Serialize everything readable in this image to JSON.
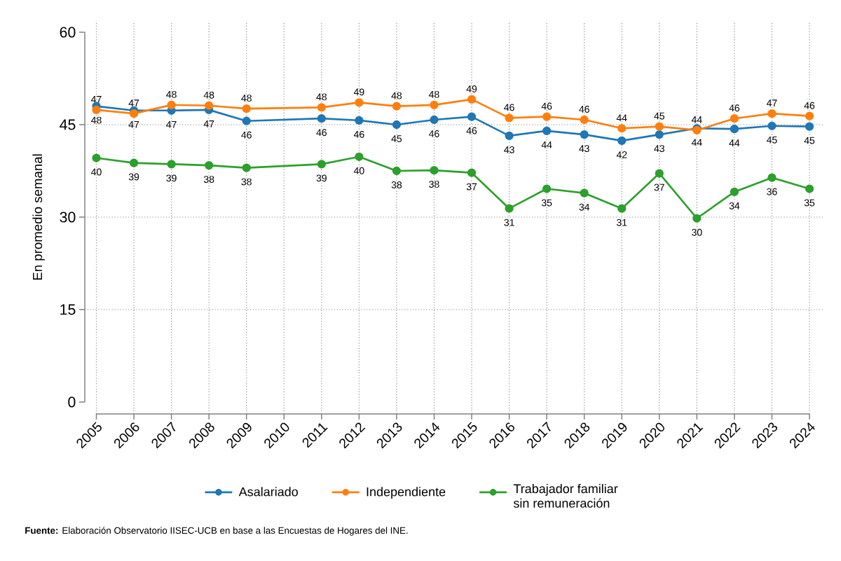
{
  "chart_data": {
    "type": "line",
    "ylabel": "En promedio semanal",
    "annotations": [
      "**Fuente:** Elaboración Observatorio IISEC-UCB en base a las Encuestas de Hogares del INE."
    ],
    "x": [
      2005,
      2006,
      2007,
      2008,
      2009,
      2011,
      2012,
      2013,
      2014,
      2015,
      2016,
      2017,
      2018,
      2019,
      2020,
      2021,
      2022,
      2023,
      2024
    ],
    "xlim": [
      2005,
      2024
    ],
    "xticks": [
      2005,
      2006,
      2007,
      2008,
      2009,
      2010,
      2011,
      2012,
      2013,
      2014,
      2015,
      2016,
      2017,
      2018,
      2019,
      2020,
      2021,
      2022,
      2023,
      2024
    ],
    "ylim": [
      0,
      60
    ],
    "yticks": [
      0,
      15,
      30,
      45,
      60
    ],
    "grid": true,
    "legend": "bottom",
    "marker": "circle",
    "line_style": "solid",
    "series": [
      {
        "name": "Asalariado",
        "color": "#1f77b4",
        "values": [
          48.0,
          47.3,
          47.3,
          47.4,
          45.6,
          46.0,
          45.7,
          45.0,
          45.8,
          46.3,
          43.2,
          44.0,
          43.4,
          42.4,
          43.4,
          44.4,
          44.3,
          44.8,
          44.7
        ],
        "value_labels": [
          "48",
          "47",
          "47",
          "47",
          "46",
          "46",
          "46",
          "45",
          "46",
          "46",
          "43",
          "44",
          "43",
          "42",
          "43",
          "44",
          "44",
          "45",
          "45"
        ]
      },
      {
        "name": "Independiente",
        "color": "#ff7f0e",
        "values": [
          47.4,
          46.8,
          48.2,
          48.1,
          47.6,
          47.8,
          48.6,
          48.0,
          48.2,
          49.1,
          46.1,
          46.3,
          45.8,
          44.4,
          44.7,
          44.1,
          46.0,
          46.8,
          46.4
        ],
        "value_labels": [
          "47",
          "47",
          "48",
          "48",
          "48",
          "48",
          "49",
          "48",
          "48",
          "49",
          "46",
          "46",
          "46",
          "44",
          "45",
          "44",
          "46",
          "47",
          "46"
        ]
      },
      {
        "name": "Trabajador familiar sin remuneración",
        "color": "#2ca02c",
        "values": [
          39.6,
          38.8,
          38.6,
          38.4,
          38.0,
          38.6,
          39.8,
          37.5,
          37.6,
          37.2,
          31.4,
          34.6,
          33.9,
          31.4,
          37.1,
          29.8,
          34.1,
          36.4,
          34.6
        ],
        "value_labels": [
          "40",
          "39",
          "39",
          "38",
          "38",
          "39",
          "40",
          "38",
          "38",
          "37",
          "31",
          "35",
          "34",
          "31",
          "37",
          "30",
          "34",
          "36",
          "35"
        ]
      }
    ]
  }
}
